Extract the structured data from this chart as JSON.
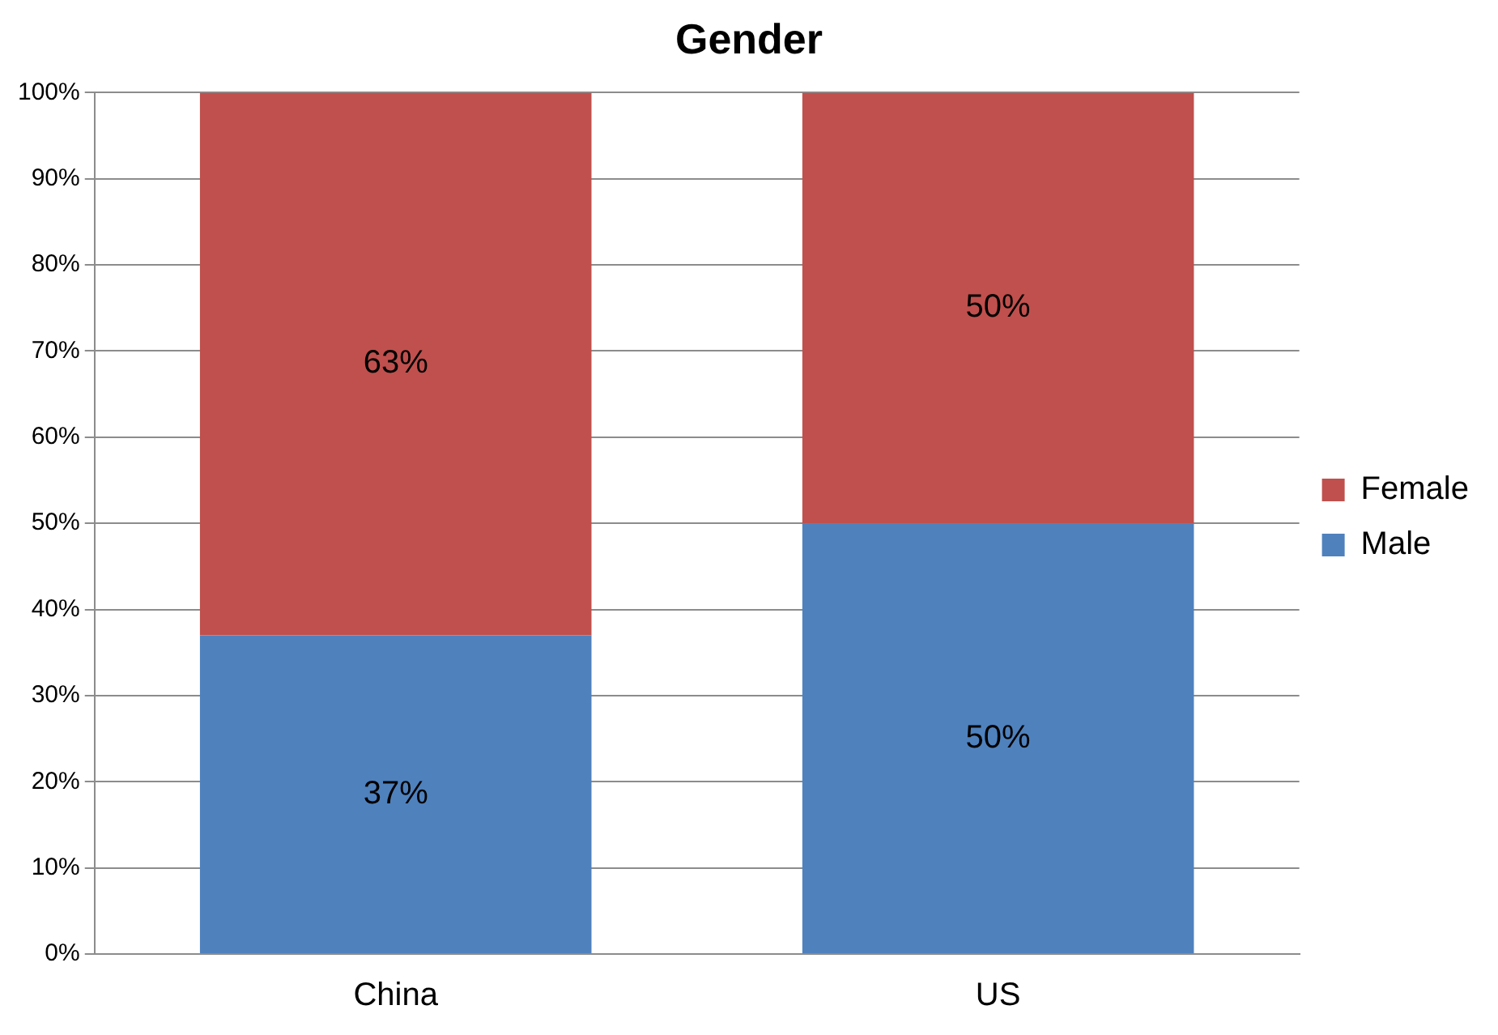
{
  "chart_data": {
    "type": "bar",
    "title": "Gender",
    "categories": [
      "China",
      "US"
    ],
    "stacked": true,
    "series": [
      {
        "name": "Male",
        "color": "#4f81bd",
        "values": [
          37,
          50
        ],
        "value_labels": [
          "37%",
          "50%"
        ]
      },
      {
        "name": "Female",
        "color": "#c0504d",
        "values": [
          63,
          50
        ],
        "value_labels": [
          "63%",
          "50%"
        ]
      }
    ],
    "ylim": [
      0,
      100
    ],
    "yticks": [
      {
        "value": 0,
        "label": "0%"
      },
      {
        "value": 10,
        "label": "10%"
      },
      {
        "value": 20,
        "label": "20%"
      },
      {
        "value": 30,
        "label": "30%"
      },
      {
        "value": 40,
        "label": "40%"
      },
      {
        "value": 50,
        "label": "50%"
      },
      {
        "value": 60,
        "label": "60%"
      },
      {
        "value": 70,
        "label": "70%"
      },
      {
        "value": 80,
        "label": "80%"
      },
      {
        "value": 90,
        "label": "90%"
      },
      {
        "value": 100,
        "label": "100%"
      }
    ],
    "grid": "y",
    "legend": "right"
  }
}
